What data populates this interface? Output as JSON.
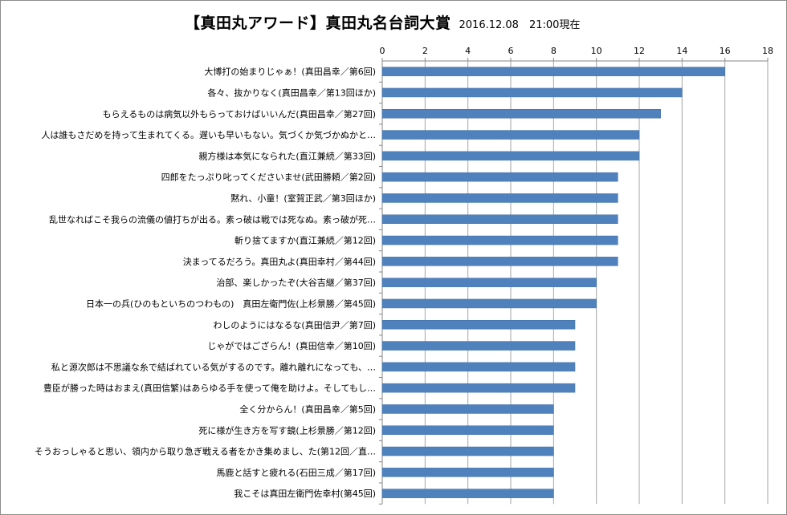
{
  "chart_data": {
    "type": "bar",
    "orientation": "horizontal",
    "title": "【真田丸アワード】真田丸名台詞大賞",
    "subtitle": "2016.12.08　21:00現在",
    "xlim": [
      0,
      18
    ],
    "xticks": [
      0,
      2,
      4,
      6,
      8,
      10,
      12,
      14,
      16,
      18
    ],
    "grid": "vertical",
    "axis_position": "top",
    "legend": "none",
    "bar_color": "#4f81bd",
    "categories": [
      "大博打の始まりじゃぁ！(真田昌幸／第6回)",
      "各々、抜かりなく(真田昌幸／第13回ほか)",
      "もらえるものは病気以外もらっておけばいいんだ(真田昌幸／第27回)",
      "人は誰もさだめを持って生まれてくる。遅いも早いもない。気づくか気づかぬかと…",
      "親方様は本気になられた(直江兼続／第33回)",
      "四郎をたっぷり叱ってくださいませ(武田勝頼／第2回)",
      "黙れ、小童！(室賀正武／第3回ほか)",
      "乱世なればこそ我らの流儀の値打ちが出る。素っ破は戦では死なぬ。素っ破が死…",
      "斬り捨てますか(直江兼続／第12回)",
      "決まってるだろう。真田丸よ(真田幸村／第44回)",
      "治部、楽しかったぞ(大谷吉継／第37回)",
      "日本一の兵(ひのもといちのつわもの)　真田左衛門佐(上杉景勝／第45回)",
      "わしのようにはなるな(真田信尹／第7回)",
      "じゃがではござらん！(真田信幸／第10回)",
      "私と源次郎は不思議な糸で結ばれている気がするのです。離れ離れになっても、…",
      "豊臣が勝った時はおまえ(真田信繁)はあらゆる手を使って俺を助けよ。そしてもし…",
      "全く分からん！(真田昌幸／第5回)",
      "死に様が生き方を写す鏡(上杉景勝／第12回)",
      "そうおっしゃると思い、領内から取り急ぎ戦える者をかき集めまし、た(第12回／直…",
      "馬鹿と話すと疲れる(石田三成／第17回)",
      "我こそは真田左衛門佐幸村(第45回)"
    ],
    "values": [
      16,
      14,
      13,
      12,
      12,
      11,
      11,
      11,
      11,
      11,
      10,
      10,
      9,
      9,
      9,
      9,
      8,
      8,
      8,
      8,
      8
    ]
  }
}
